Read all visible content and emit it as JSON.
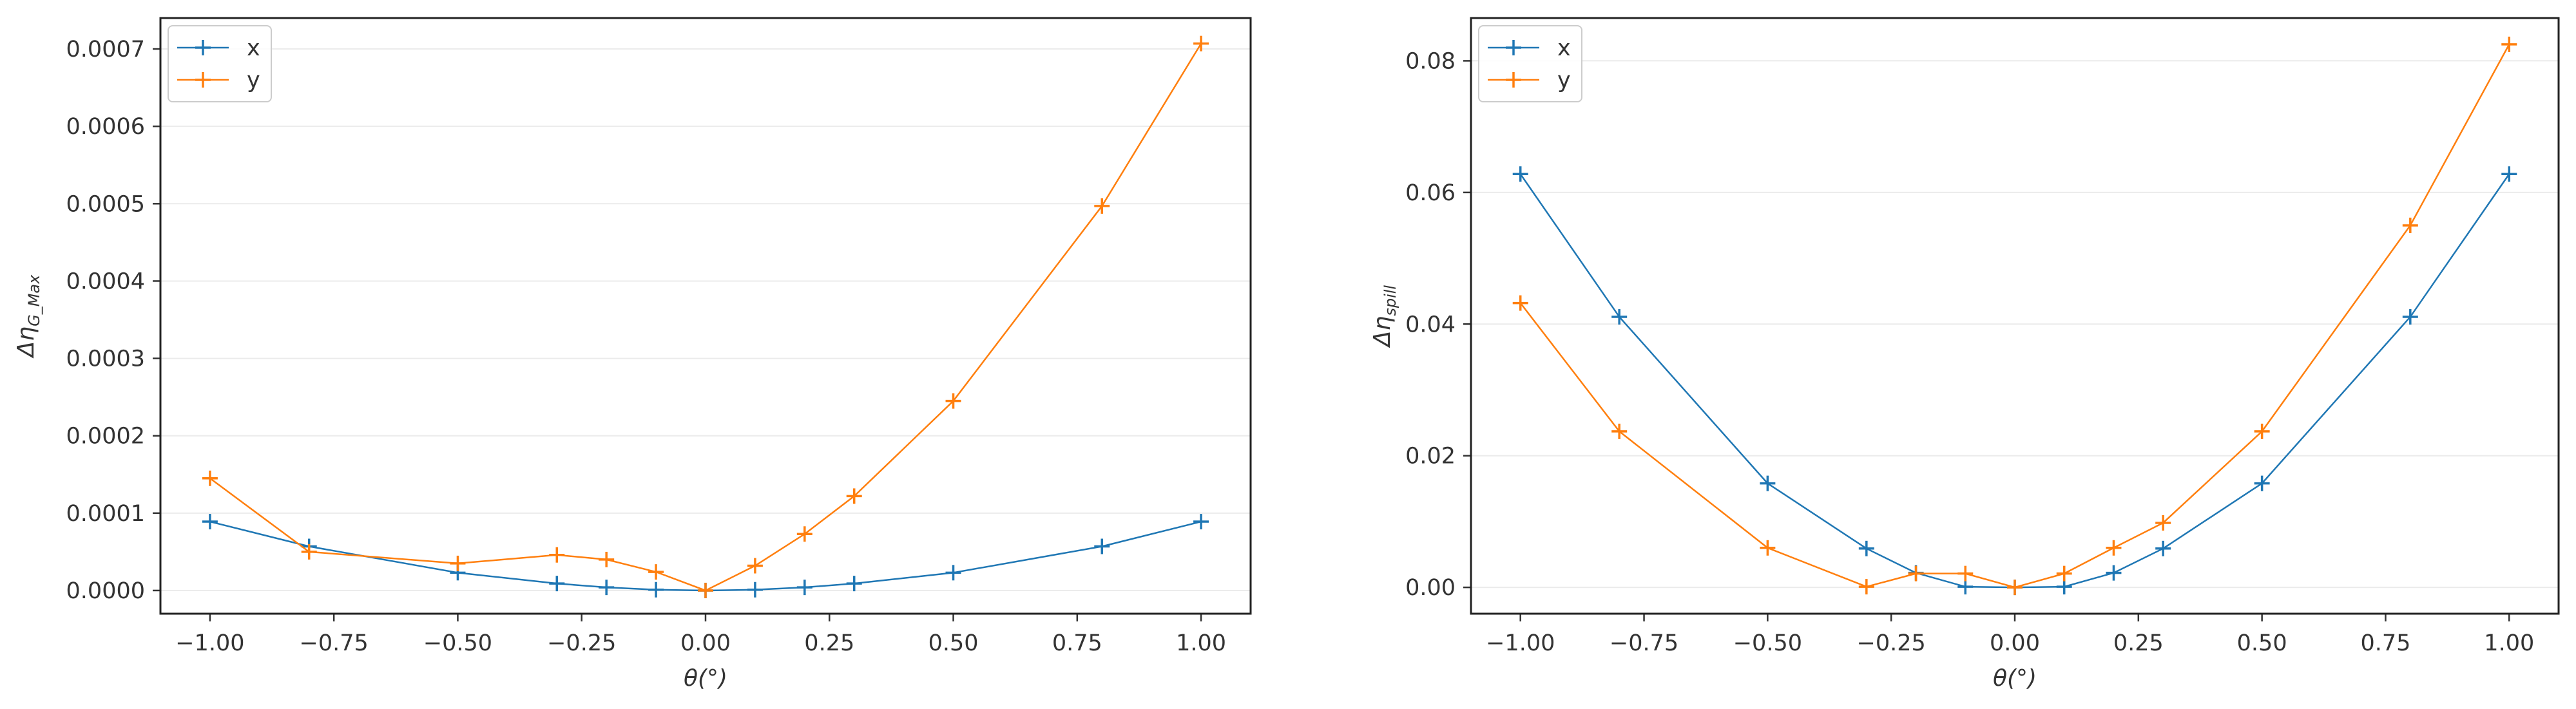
{
  "chart_data": [
    {
      "type": "line",
      "xlabel": "θ(°)",
      "ylabel_base": "Δη",
      "ylabel_sub": "G_Max",
      "xlim": [
        -1.1,
        1.1
      ],
      "ylim": [
        -3e-05,
        0.00074
      ],
      "xticks": [
        -1.0,
        -0.75,
        -0.5,
        -0.25,
        0.0,
        0.25,
        0.5,
        0.75,
        1.0
      ],
      "xtick_labels": [
        "−1.00",
        "−0.75",
        "−0.50",
        "−0.25",
        "0.00",
        "0.25",
        "0.50",
        "0.75",
        "1.00"
      ],
      "yticks": [
        0.0,
        0.0001,
        0.0002,
        0.0003,
        0.0004,
        0.0005,
        0.0006,
        0.0007
      ],
      "ytick_labels": [
        "0.0000",
        "0.0001",
        "0.0002",
        "0.0003",
        "0.0004",
        "0.0005",
        "0.0006",
        "0.0007"
      ],
      "grid": "horizontal",
      "legend_position": "upper-left",
      "x": [
        -1.0,
        -0.8,
        -0.5,
        -0.3,
        -0.2,
        -0.1,
        0.0,
        0.1,
        0.2,
        0.3,
        0.5,
        0.8,
        1.0
      ],
      "series": [
        {
          "name": "x",
          "color": "#1f77b4",
          "values": [
            8.9e-05,
            5.7e-05,
            2.3e-05,
            9e-06,
            4e-06,
            1e-06,
            0.0,
            1e-06,
            4e-06,
            9e-06,
            2.3e-05,
            5.7e-05,
            8.9e-05
          ]
        },
        {
          "name": "y",
          "color": "#ff7f0e",
          "values": [
            0.000145,
            5e-05,
            3.5e-05,
            4.6e-05,
            4e-05,
            2.4e-05,
            0.0,
            3.2e-05,
            7.3e-05,
            0.000122,
            0.000245,
            0.000497,
            0.000707
          ]
        }
      ]
    },
    {
      "type": "line",
      "xlabel": "θ(°)",
      "ylabel_base": "Δη",
      "ylabel_sub": "spill",
      "xlim": [
        -1.1,
        1.1
      ],
      "ylim": [
        -0.004,
        0.0865
      ],
      "xticks": [
        -1.0,
        -0.75,
        -0.5,
        -0.25,
        0.0,
        0.25,
        0.5,
        0.75,
        1.0
      ],
      "xtick_labels": [
        "−1.00",
        "−0.75",
        "−0.50",
        "−0.25",
        "0.00",
        "0.25",
        "0.50",
        "0.75",
        "1.00"
      ],
      "yticks": [
        0.0,
        0.02,
        0.04,
        0.06,
        0.08
      ],
      "ytick_labels": [
        "0.00",
        "0.02",
        "0.04",
        "0.06",
        "0.08"
      ],
      "grid": "horizontal",
      "legend_position": "upper-left",
      "x": [
        -1.0,
        -0.8,
        -0.5,
        -0.3,
        -0.2,
        -0.1,
        0.0,
        0.1,
        0.2,
        0.3,
        0.5,
        0.8,
        1.0
      ],
      "series": [
        {
          "name": "x",
          "color": "#1f77b4",
          "values": [
            0.0628,
            0.0411,
            0.0158,
            0.0059,
            0.0022,
            0.0001,
            0.0,
            0.0001,
            0.0022,
            0.0059,
            0.0158,
            0.0411,
            0.0628
          ]
        },
        {
          "name": "y",
          "color": "#ff7f0e",
          "values": [
            0.0432,
            0.0237,
            0.006,
            0.0001,
            0.0021,
            0.0021,
            0.0,
            0.0021,
            0.006,
            0.0098,
            0.0237,
            0.055,
            0.0825
          ]
        }
      ]
    }
  ]
}
